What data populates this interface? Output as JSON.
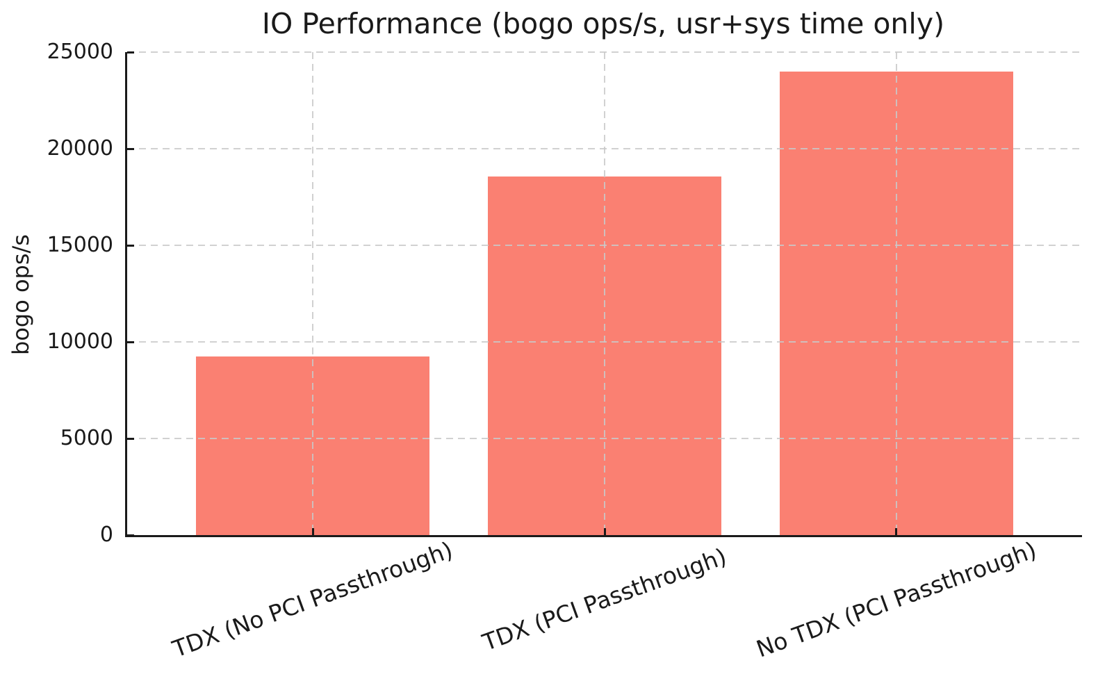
{
  "chart_data": {
    "type": "bar",
    "title": "IO Performance (bogo ops/s, usr+sys time only)",
    "xlabel": "",
    "ylabel": "bogo ops/s",
    "categories": [
      "TDX (No PCI Passthrough)",
      "TDX (PCI Passthrough)",
      "No TDX (PCI Passthrough)"
    ],
    "values": [
      9250,
      18550,
      24000
    ],
    "ylim": [
      0,
      25000
    ],
    "yticks": [
      0,
      5000,
      10000,
      15000,
      20000,
      25000
    ],
    "bar_color": "#FA8072",
    "bar_width_fraction": 0.8,
    "x_margin_units": 0.137,
    "grid": "dashed gridlines on both axes, drawn over bars",
    "tick_direction": "in",
    "xtick_label_rotation_deg": 20,
    "legend": "none"
  }
}
